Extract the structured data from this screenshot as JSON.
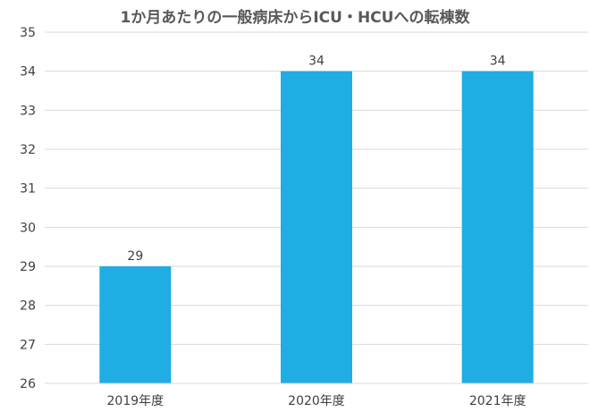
{
  "chart_data": {
    "type": "bar",
    "title": "1か月あたりの一般病床からICU・HCUへの転棟数",
    "categories": [
      "2019年度",
      "2020年度",
      "2021年度"
    ],
    "values": [
      29,
      34,
      34
    ],
    "data_labels": [
      "29",
      "34",
      "34"
    ],
    "xlabel": "",
    "ylabel": "",
    "ylim": [
      26,
      35
    ],
    "yticks": [
      26,
      27,
      28,
      29,
      30,
      31,
      32,
      33,
      34,
      35
    ],
    "grid": true,
    "legend": "none",
    "bar_color": "#1FADE4"
  }
}
